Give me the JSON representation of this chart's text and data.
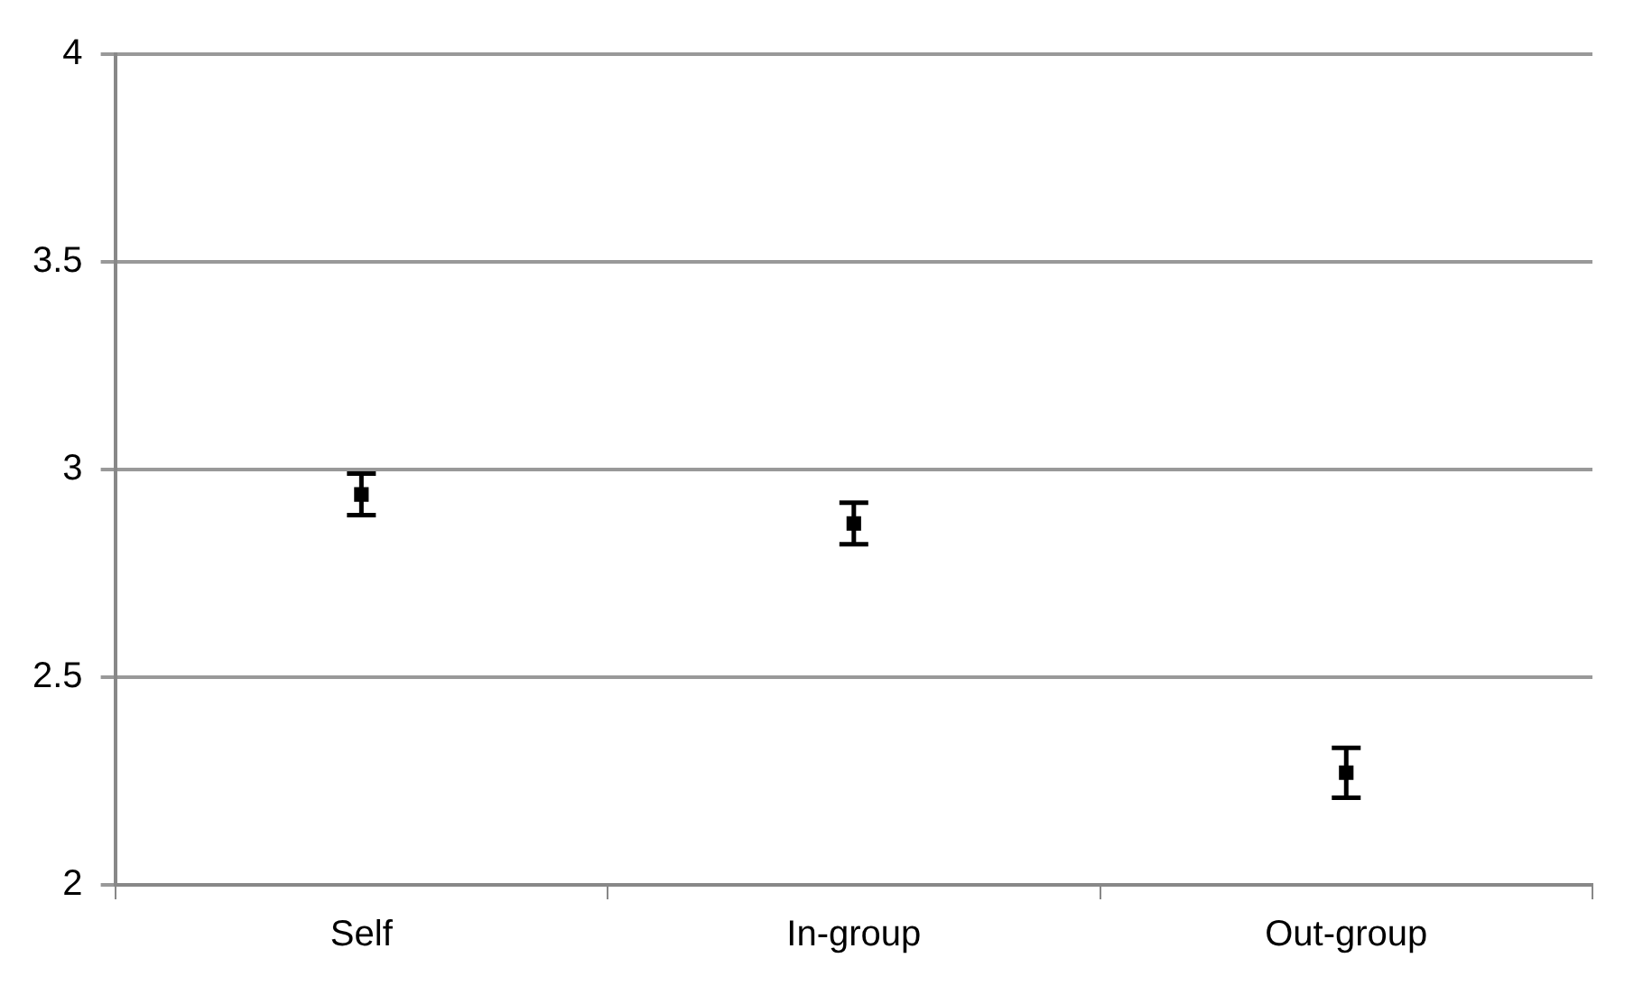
{
  "chart_data": {
    "type": "scatter",
    "categories": [
      "Self",
      "In-group",
      "Out-group"
    ],
    "series": [
      {
        "color": "#000000",
        "values": [
          2.94,
          2.87,
          2.27
        ],
        "errors": [
          0.05,
          0.05,
          0.06
        ]
      }
    ],
    "ylim": [
      2,
      4
    ],
    "yticks": [
      2,
      2.5,
      3,
      3.5,
      4
    ],
    "grid": "y",
    "legend": false,
    "marker": "square"
  }
}
